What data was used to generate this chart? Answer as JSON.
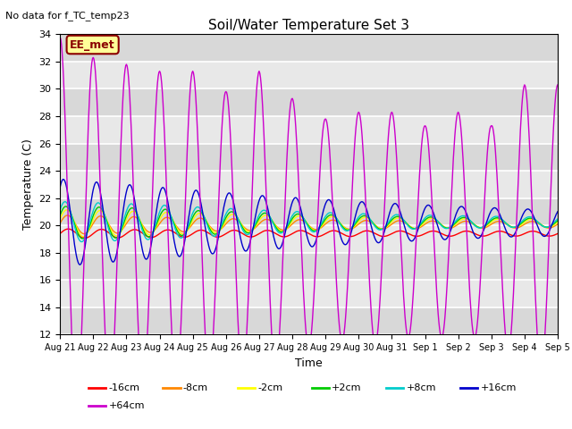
{
  "title": "Soil/Water Temperature Set 3",
  "subtitle": "No data for f_TC_temp23",
  "xlabel": "Time",
  "ylabel": "Temperature (C)",
  "ylim": [
    12,
    34
  ],
  "yticks": [
    12,
    14,
    16,
    18,
    20,
    22,
    24,
    26,
    28,
    30,
    32,
    34
  ],
  "bg_color": "#e8e8e8",
  "legend_label_box": "EE_met",
  "legend_box_color": "#ffff99",
  "legend_box_edge": "#8B0000",
  "series": [
    {
      "label": "-16cm",
      "color": "#ff0000",
      "base": 19.4,
      "amplitudes": [
        0.35,
        0.32,
        0.3,
        0.28,
        0.26,
        0.25,
        0.24,
        0.23,
        0.22,
        0.21,
        0.2,
        0.19,
        0.19,
        0.18,
        0.18
      ],
      "phase_shift": 0.0
    },
    {
      "label": "-8cm",
      "color": "#ff8800",
      "base": 20.05,
      "amplitudes": [
        0.7,
        0.65,
        0.6,
        0.55,
        0.5,
        0.45,
        0.4,
        0.38,
        0.35,
        0.32,
        0.3,
        0.28,
        0.26,
        0.25,
        0.24
      ],
      "phase_shift": 0.05
    },
    {
      "label": "-2cm",
      "color": "#ffff00",
      "base": 20.15,
      "amplitudes": [
        1.0,
        0.95,
        0.9,
        0.82,
        0.75,
        0.68,
        0.6,
        0.55,
        0.5,
        0.45,
        0.4,
        0.37,
        0.34,
        0.32,
        0.3
      ],
      "phase_shift": 0.1
    },
    {
      "label": "+2cm",
      "color": "#00cc00",
      "base": 20.2,
      "amplitudes": [
        1.2,
        1.15,
        1.1,
        1.0,
        0.9,
        0.82,
        0.72,
        0.65,
        0.58,
        0.52,
        0.46,
        0.42,
        0.39,
        0.36,
        0.33
      ],
      "phase_shift": 0.15
    },
    {
      "label": "+8cm",
      "color": "#00cccc",
      "base": 20.25,
      "amplitudes": [
        1.5,
        1.42,
        1.35,
        1.25,
        1.12,
        1.0,
        0.88,
        0.78,
        0.7,
        0.62,
        0.55,
        0.5,
        0.46,
        0.42,
        0.38
      ],
      "phase_shift": 0.2
    },
    {
      "label": "+16cm",
      "color": "#0000cc",
      "base": 20.2,
      "amplitudes": [
        3.2,
        3.0,
        2.8,
        2.6,
        2.4,
        2.2,
        2.0,
        1.85,
        1.7,
        1.55,
        1.42,
        1.3,
        1.2,
        1.1,
        1.0
      ],
      "phase_shift": 0.3
    },
    {
      "label": "+64cm",
      "color": "#cc00cc",
      "base": 19.8,
      "amplitudes": [
        14.0,
        12.5,
        12.0,
        11.5,
        11.5,
        10.0,
        11.5,
        9.5,
        8.0,
        8.5,
        8.5,
        7.5,
        8.5,
        7.5,
        10.5
      ],
      "phase_shift": 0.5
    }
  ],
  "xtick_labels": [
    "Aug 21",
    "Aug 22",
    "Aug 23",
    "Aug 24",
    "Aug 25",
    "Aug 26",
    "Aug 27",
    "Aug 28",
    "Aug 29",
    "Aug 30",
    "Aug 31",
    "Sep 1",
    "Sep 2",
    "Sep 3",
    "Sep 4",
    "Sep 5"
  ],
  "xtick_positions": [
    0,
    1,
    2,
    3,
    4,
    5,
    6,
    7,
    8,
    9,
    10,
    11,
    12,
    13,
    14,
    15
  ]
}
